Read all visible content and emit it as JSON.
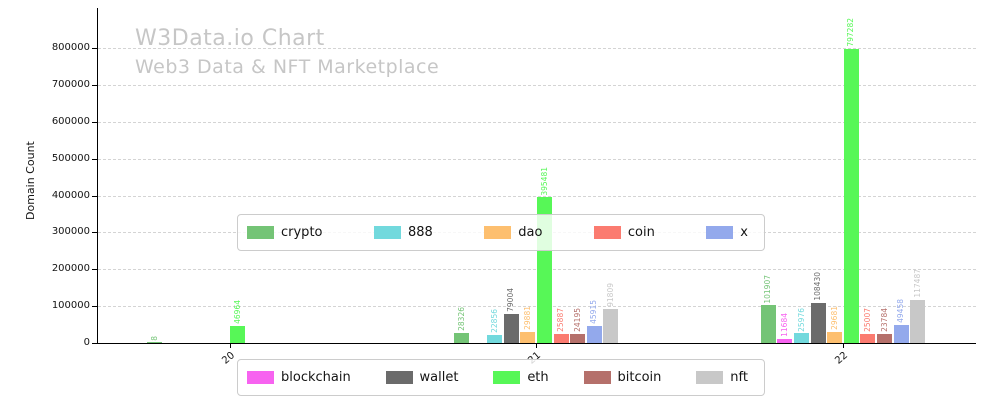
{
  "title": "W3Data.io Chart",
  "subtitle": "Web3 Data & NFT Marketplace",
  "chart_data": {
    "type": "bar",
    "title": "W3Data.io Chart",
    "subtitle": "Web3 Data & NFT Marketplace",
    "ylabel": "Domain Count",
    "xlabel": "",
    "categories": [
      "20",
      "21",
      "22"
    ],
    "yticks": [
      0,
      100000,
      200000,
      300000,
      400000,
      500000,
      600000,
      700000,
      800000
    ],
    "ylim": [
      0,
      900000
    ],
    "grid": "horizontal-dashed",
    "series": [
      {
        "name": "crypto",
        "color": "#74c476",
        "values": [
          8,
          28326,
          101907
        ]
      },
      {
        "name": "blockchain",
        "color": "#f763f0",
        "values": [
          0,
          0,
          11684
        ]
      },
      {
        "name": "888",
        "color": "#72d9dd",
        "values": [
          0,
          22856,
          25976
        ]
      },
      {
        "name": "wallet",
        "color": "#6b6b6b",
        "values": [
          0,
          79004,
          108430
        ]
      },
      {
        "name": "dao",
        "color": "#fdbf6f",
        "values": [
          0,
          29881,
          29681
        ]
      },
      {
        "name": "eth",
        "color": "#57f757",
        "values": [
          46964,
          395481,
          797282
        ]
      },
      {
        "name": "coin",
        "color": "#fb7b70",
        "values": [
          0,
          25887,
          25007
        ]
      },
      {
        "name": "bitcoin",
        "color": "#b5706b",
        "values": [
          0,
          24195,
          23784
        ]
      },
      {
        "name": "x",
        "color": "#93a9ec",
        "values": [
          0,
          45915,
          49458
        ]
      },
      {
        "name": "nft",
        "color": "#c8c8c8",
        "values": [
          0,
          91809,
          117487
        ]
      }
    ],
    "legend_rows": [
      [
        "crypto",
        "888",
        "dao",
        "coin",
        "x"
      ],
      [
        "blockchain",
        "wallet",
        "eth",
        "bitcoin",
        "nft"
      ]
    ],
    "legend_position": "center"
  }
}
